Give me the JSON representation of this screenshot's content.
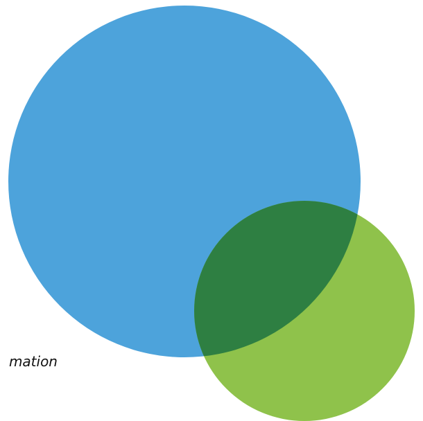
{
  "caption": "mation",
  "colors": {
    "background": "#ffffff",
    "blue_circle": "#4DA3DB",
    "green_circle": "#8FC24B",
    "overlap": "#2E7F42",
    "caption_text": "#111111"
  },
  "circles": [
    {
      "name": "blue-circle",
      "fill": "#4DA3DB"
    },
    {
      "name": "green-circle",
      "fill": "#8FC24B"
    }
  ],
  "overlap": {
    "name": "overlap-region",
    "fill": "#2E7F42"
  }
}
